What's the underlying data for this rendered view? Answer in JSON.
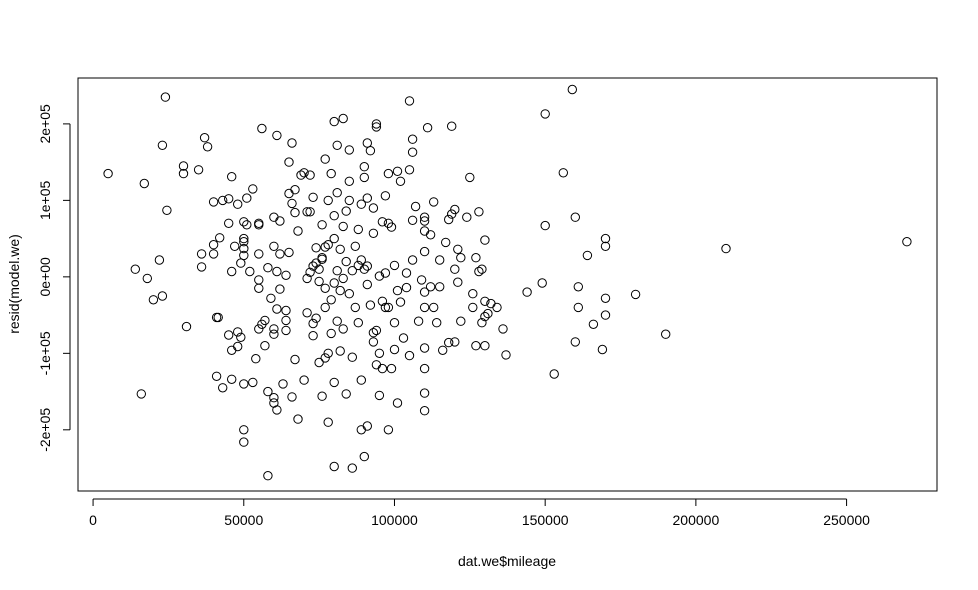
{
  "chart_data": {
    "type": "scatter",
    "title": "",
    "xlabel": "dat.we$mileage",
    "ylabel": "resid(model.we)",
    "xlim": [
      -5000,
      280000
    ],
    "ylim": [
      -280000,
      260000
    ],
    "grid": false,
    "legend": "none",
    "x_ticks": [
      0,
      50000,
      100000,
      150000,
      200000,
      250000
    ],
    "x_tick_labels": [
      "0",
      "50000",
      "100000",
      "150000",
      "200000",
      "250000"
    ],
    "y_ticks": [
      -200000,
      -100000,
      0,
      100000,
      200000
    ],
    "y_tick_labels": [
      "-2e+05",
      "-1e+05",
      "0e+00",
      "1e+05",
      "2e+05"
    ],
    "colors": {
      "point": "#000000",
      "axis": "#000000",
      "background": "#ffffff"
    },
    "series": [
      {
        "points": [
          [
            5000,
            135000
          ],
          [
            14000,
            10000
          ],
          [
            16000,
            -153000
          ],
          [
            17000,
            122000
          ],
          [
            18000,
            -2000
          ],
          [
            20000,
            -30000
          ],
          [
            22000,
            22000
          ],
          [
            23000,
            172000
          ],
          [
            23000,
            -25000
          ],
          [
            24000,
            235000
          ],
          [
            24500,
            87000
          ],
          [
            30000,
            145000
          ],
          [
            30000,
            135000
          ],
          [
            31000,
            -65000
          ],
          [
            35000,
            140000
          ],
          [
            36000,
            30000
          ],
          [
            36000,
            13000
          ],
          [
            37000,
            182000
          ],
          [
            38000,
            170000
          ],
          [
            40000,
            98000
          ],
          [
            40000,
            42000
          ],
          [
            40000,
            30000
          ],
          [
            41000,
            -53000
          ],
          [
            41500,
            -53000
          ],
          [
            41000,
            -130000
          ],
          [
            42000,
            51000
          ],
          [
            43000,
            100000
          ],
          [
            43000,
            -145000
          ],
          [
            45000,
            102000
          ],
          [
            45000,
            70000
          ],
          [
            45000,
            -76000
          ],
          [
            46000,
            131000
          ],
          [
            46000,
            -96000
          ],
          [
            46000,
            7000
          ],
          [
            46000,
            -134000
          ],
          [
            47000,
            40000
          ],
          [
            48000,
            95000
          ],
          [
            48000,
            -91000
          ],
          [
            48000,
            -72000
          ],
          [
            49000,
            18000
          ],
          [
            49000,
            -79000
          ],
          [
            50000,
            72000
          ],
          [
            50000,
            50000
          ],
          [
            50000,
            46000
          ],
          [
            50000,
            37000
          ],
          [
            50000,
            28000
          ],
          [
            50000,
            -140000
          ],
          [
            50000,
            -200000
          ],
          [
            50000,
            -216000
          ],
          [
            51000,
            68000
          ],
          [
            51000,
            103000
          ],
          [
            52000,
            7000
          ],
          [
            53000,
            115000
          ],
          [
            53000,
            -138000
          ],
          [
            54000,
            -107000
          ],
          [
            55000,
            70000
          ],
          [
            55000,
            68000
          ],
          [
            55000,
            30000
          ],
          [
            55000,
            -4000
          ],
          [
            55000,
            -15000
          ],
          [
            55000,
            -68000
          ],
          [
            56000,
            194000
          ],
          [
            56000,
            -62000
          ],
          [
            57000,
            -57000
          ],
          [
            57000,
            -90000
          ],
          [
            58000,
            -150000
          ],
          [
            58000,
            -260000
          ],
          [
            58000,
            12000
          ],
          [
            59000,
            -28000
          ],
          [
            60000,
            78000
          ],
          [
            60000,
            40000
          ],
          [
            60000,
            -68000
          ],
          [
            60000,
            -75000
          ],
          [
            60000,
            -158000
          ],
          [
            60000,
            -165000
          ],
          [
            61000,
            -174000
          ],
          [
            61000,
            185000
          ],
          [
            61000,
            -42000
          ],
          [
            61000,
            7000
          ],
          [
            62000,
            73000
          ],
          [
            62000,
            30000
          ],
          [
            62000,
            -16000
          ],
          [
            63000,
            -140000
          ],
          [
            64000,
            2000
          ],
          [
            64000,
            -44000
          ],
          [
            64000,
            -57000
          ],
          [
            64000,
            -70000
          ],
          [
            65000,
            150000
          ],
          [
            65000,
            109000
          ],
          [
            65000,
            32000
          ],
          [
            66000,
            -157000
          ],
          [
            66000,
            175000
          ],
          [
            66000,
            96000
          ],
          [
            67000,
            114000
          ],
          [
            67000,
            84000
          ],
          [
            67000,
            -108000
          ],
          [
            68000,
            60000
          ],
          [
            68000,
            -186000
          ],
          [
            69000,
            133000
          ],
          [
            70000,
            136000
          ],
          [
            70000,
            -135000
          ],
          [
            71000,
            85000
          ],
          [
            71000,
            -2000
          ],
          [
            71000,
            -47000
          ],
          [
            72000,
            133000
          ],
          [
            72000,
            85000
          ],
          [
            72000,
            6000
          ],
          [
            73000,
            104000
          ],
          [
            73000,
            -61000
          ],
          [
            73000,
            14000
          ],
          [
            73000,
            -77000
          ],
          [
            74000,
            38000
          ],
          [
            74000,
            18000
          ],
          [
            74000,
            -54000
          ],
          [
            75000,
            10000
          ],
          [
            75000,
            -6000
          ],
          [
            75000,
            -112000
          ],
          [
            76000,
            68000
          ],
          [
            76000,
            25000
          ],
          [
            76000,
            23000
          ],
          [
            76000,
            -156000
          ],
          [
            77000,
            154000
          ],
          [
            77000,
            39000
          ],
          [
            77000,
            -15000
          ],
          [
            77000,
            -40000
          ],
          [
            77000,
            -106000
          ],
          [
            78000,
            100000
          ],
          [
            78000,
            42000
          ],
          [
            78000,
            -100000
          ],
          [
            78000,
            -190000
          ],
          [
            79000,
            135000
          ],
          [
            79000,
            -30000
          ],
          [
            79000,
            -74000
          ],
          [
            80000,
            203000
          ],
          [
            80000,
            80000
          ],
          [
            80000,
            50000
          ],
          [
            80000,
            -8000
          ],
          [
            80000,
            -138000
          ],
          [
            80000,
            -248000
          ],
          [
            81000,
            172000
          ],
          [
            81000,
            110000
          ],
          [
            81000,
            8000
          ],
          [
            81000,
            -58000
          ],
          [
            82000,
            36000
          ],
          [
            82000,
            -18000
          ],
          [
            82000,
            -97000
          ],
          [
            83000,
            207000
          ],
          [
            83000,
            66000
          ],
          [
            83000,
            -2000
          ],
          [
            83000,
            -68000
          ],
          [
            84000,
            86000
          ],
          [
            84000,
            20000
          ],
          [
            84000,
            -153000
          ],
          [
            85000,
            166000
          ],
          [
            85000,
            125000
          ],
          [
            85000,
            100000
          ],
          [
            85000,
            -22000
          ],
          [
            86000,
            8000
          ],
          [
            86000,
            -105000
          ],
          [
            86000,
            -250000
          ],
          [
            87000,
            40000
          ],
          [
            87000,
            -40000
          ],
          [
            88000,
            62000
          ],
          [
            88000,
            15000
          ],
          [
            88000,
            -60000
          ],
          [
            89000,
            95000
          ],
          [
            89000,
            22000
          ],
          [
            89000,
            -135000
          ],
          [
            89000,
            -200000
          ],
          [
            90000,
            144000
          ],
          [
            90000,
            130000
          ],
          [
            90000,
            10000
          ],
          [
            90000,
            -235000
          ],
          [
            91000,
            175000
          ],
          [
            91000,
            103000
          ],
          [
            91000,
            14000
          ],
          [
            91000,
            -10000
          ],
          [
            91000,
            -195000
          ],
          [
            92000,
            165000
          ],
          [
            92000,
            -37000
          ],
          [
            93000,
            90000
          ],
          [
            93000,
            57000
          ],
          [
            93000,
            -73000
          ],
          [
            93000,
            -85000
          ],
          [
            94000,
            200000
          ],
          [
            94000,
            196000
          ],
          [
            94000,
            -70000
          ],
          [
            94000,
            -115000
          ],
          [
            95000,
            1000
          ],
          [
            95000,
            -100000
          ],
          [
            95000,
            -155000
          ],
          [
            96000,
            72000
          ],
          [
            96000,
            -32000
          ],
          [
            96000,
            -120000
          ],
          [
            97000,
            106000
          ],
          [
            97000,
            5000
          ],
          [
            97000,
            -40000
          ],
          [
            98000,
            135000
          ],
          [
            98000,
            70000
          ],
          [
            98000,
            -40000
          ],
          [
            98000,
            -200000
          ],
          [
            99000,
            65000
          ],
          [
            99000,
            -120000
          ],
          [
            100000,
            15000
          ],
          [
            100000,
            -60000
          ],
          [
            100000,
            -95000
          ],
          [
            101000,
            138000
          ],
          [
            101000,
            -18000
          ],
          [
            101000,
            -165000
          ],
          [
            102000,
            125000
          ],
          [
            102000,
            -33000
          ],
          [
            103000,
            -80000
          ],
          [
            104000,
            5000
          ],
          [
            104000,
            -14000
          ],
          [
            105000,
            230000
          ],
          [
            105000,
            140000
          ],
          [
            105000,
            -103000
          ],
          [
            106000,
            180000
          ],
          [
            106000,
            163000
          ],
          [
            106000,
            74000
          ],
          [
            106000,
            22000
          ],
          [
            107000,
            92000
          ],
          [
            108000,
            -58000
          ],
          [
            109000,
            -4000
          ],
          [
            110000,
            60000
          ],
          [
            110000,
            78000
          ],
          [
            110000,
            73000
          ],
          [
            110000,
            33000
          ],
          [
            110000,
            -20000
          ],
          [
            110000,
            -40000
          ],
          [
            110000,
            -93000
          ],
          [
            110000,
            -120000
          ],
          [
            110000,
            -152000
          ],
          [
            110000,
            -175000
          ],
          [
            111000,
            195000
          ],
          [
            112000,
            55000
          ],
          [
            112000,
            -13000
          ],
          [
            113000,
            98000
          ],
          [
            113000,
            -40000
          ],
          [
            114000,
            -60000
          ],
          [
            115000,
            22000
          ],
          [
            115000,
            -13000
          ],
          [
            116000,
            -96000
          ],
          [
            117000,
            45000
          ],
          [
            118000,
            75000
          ],
          [
            118000,
            -86000
          ],
          [
            119000,
            197000
          ],
          [
            119000,
            82000
          ],
          [
            120000,
            88000
          ],
          [
            120000,
            10000
          ],
          [
            120000,
            -85000
          ],
          [
            121000,
            36000
          ],
          [
            121000,
            -7000
          ],
          [
            122000,
            25000
          ],
          [
            122000,
            -58000
          ],
          [
            124000,
            78000
          ],
          [
            125000,
            130000
          ],
          [
            126000,
            -22000
          ],
          [
            126000,
            -40000
          ],
          [
            127000,
            25000
          ],
          [
            127000,
            -90000
          ],
          [
            128000,
            85000
          ],
          [
            128000,
            7000
          ],
          [
            129000,
            -60000
          ],
          [
            129000,
            10000
          ],
          [
            130000,
            48000
          ],
          [
            130000,
            -32000
          ],
          [
            130000,
            -52000
          ],
          [
            130000,
            -90000
          ],
          [
            131000,
            -48000
          ],
          [
            132000,
            -35000
          ],
          [
            134000,
            -40000
          ],
          [
            136000,
            -68000
          ],
          [
            137000,
            -102000
          ],
          [
            144000,
            -20000
          ],
          [
            150000,
            213000
          ],
          [
            150000,
            67000
          ],
          [
            149000,
            -8000
          ],
          [
            153000,
            -127000
          ],
          [
            156000,
            136000
          ],
          [
            159000,
            245000
          ],
          [
            160000,
            -85000
          ],
          [
            160000,
            78000
          ],
          [
            161000,
            -13000
          ],
          [
            161000,
            -40000
          ],
          [
            164000,
            28000
          ],
          [
            166000,
            -62000
          ],
          [
            169000,
            -95000
          ],
          [
            170000,
            50000
          ],
          [
            170000,
            40000
          ],
          [
            170000,
            -28000
          ],
          [
            170000,
            -50000
          ],
          [
            180000,
            -23000
          ],
          [
            190000,
            -75000
          ],
          [
            210000,
            37000
          ],
          [
            270000,
            46000
          ]
        ]
      }
    ]
  }
}
